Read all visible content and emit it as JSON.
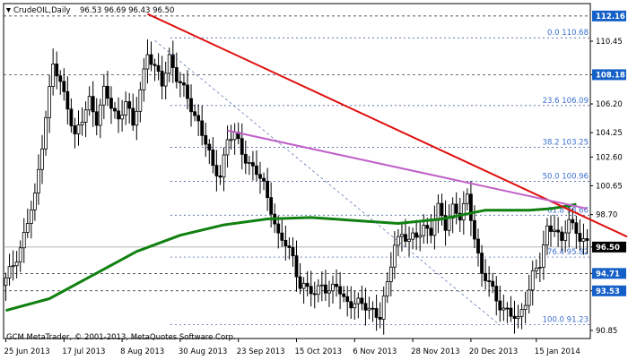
{
  "header": {
    "symbol_text": "CrudeOIL,Daily",
    "ohlc_text": "96.53 96.69 96.43 96.50"
  },
  "footer": {
    "copyright": "GCM MetaTrader, © 2001-2013, MetaQuotes Software Corp."
  },
  "colors": {
    "background": "#ffffff",
    "candle": "#000000",
    "grid": "#1e1e1e",
    "fib_grid": "#2b4c9a",
    "fib_label": "#3a6fd0",
    "trend_red": "#e01010",
    "trend_purple": "#c060c8",
    "ma_green": "#108010",
    "price_tag_blue": "#1460c8",
    "current_tag_bg": "#000000"
  },
  "chart_data": {
    "type": "candlestick",
    "instrument": "CrudeOIL",
    "timeframe": "Daily",
    "ylim": [
      90.3,
      113.0
    ],
    "y_ticks": [
      110.45,
      108.18,
      106.2,
      104.25,
      102.6,
      100.65,
      98.7,
      96.5,
      94.71,
      93.53,
      90.85
    ],
    "y_tick_labels": [
      "110.45",
      "108.18",
      "106.20",
      "104.25",
      "102.60",
      "100.65",
      "98.70",
      "96.50",
      "94.71",
      "93.53",
      "90.85"
    ],
    "price_tags": [
      {
        "label": "112.16",
        "value": 112.16,
        "style": "blue"
      },
      {
        "label": "108.18",
        "value": 108.18,
        "style": "blue"
      },
      {
        "label": "96.50",
        "value": 96.5,
        "style": "current"
      },
      {
        "label": "94.71",
        "value": 94.71,
        "style": "blue"
      },
      {
        "label": "93.53",
        "value": 93.53,
        "style": "blue"
      }
    ],
    "x_tick_labels": [
      "25 Jun 2013",
      "17 Jul 2013",
      "8 Aug 2013",
      "30 Aug 2013",
      "23 Sep 2013",
      "15 Oct 2013",
      "6 Nov 2013",
      "28 Nov 2013",
      "20 Dec 2013",
      "15 Jan 2014"
    ],
    "x_tick_index": [
      0,
      16,
      32,
      48,
      64,
      80,
      96,
      112,
      128,
      146
    ],
    "fib_levels": [
      {
        "label": "0.0 110.68",
        "value": 110.68
      },
      {
        "label": "23.6 106.09",
        "value": 106.09
      },
      {
        "label": "38.2 103.25",
        "value": 103.25
      },
      {
        "label": "50.0 100.96",
        "value": 100.96
      },
      {
        "label": "61.8 98.66",
        "value": 98.66
      },
      {
        "label": "76.4 95.82",
        "value": 95.82
      },
      {
        "label": "100.0 91.23",
        "value": 91.23
      }
    ],
    "trendlines": [
      {
        "name": "red",
        "from": [
          39,
          112.3
        ],
        "to": [
          171,
          97.2
        ]
      },
      {
        "name": "purple",
        "from": [
          61,
          104.4
        ],
        "to": [
          160,
          99.1
        ]
      },
      {
        "name": "dashed",
        "from": [
          41,
          110.5
        ],
        "to": [
          136,
          91.2
        ]
      }
    ],
    "moving_average": [
      [
        0,
        92.2
      ],
      [
        12,
        93.0
      ],
      [
        24,
        94.6
      ],
      [
        36,
        96.2
      ],
      [
        48,
        97.3
      ],
      [
        60,
        98.0
      ],
      [
        72,
        98.4
      ],
      [
        84,
        98.5
      ],
      [
        96,
        98.3
      ],
      [
        108,
        98.1
      ],
      [
        120,
        98.4
      ],
      [
        132,
        99.0
      ],
      [
        144,
        99.0
      ],
      [
        150,
        99.1
      ],
      [
        155,
        99.3
      ],
      [
        157,
        99.4
      ]
    ],
    "close_anchors": [
      [
        0,
        94.2
      ],
      [
        4,
        96.5
      ],
      [
        8,
        99.8
      ],
      [
        11,
        105.5
      ],
      [
        13,
        108.8
      ],
      [
        15,
        107.5
      ],
      [
        17,
        106.2
      ],
      [
        19,
        104.0
      ],
      [
        21,
        105.0
      ],
      [
        23,
        106.5
      ],
      [
        25,
        105.2
      ],
      [
        27,
        107.0
      ],
      [
        29,
        106.0
      ],
      [
        31,
        105.2
      ],
      [
        33,
        106.5
      ],
      [
        35,
        104.5
      ],
      [
        37,
        107.2
      ],
      [
        39,
        109.8
      ],
      [
        41,
        108.5
      ],
      [
        43,
        107.5
      ],
      [
        45,
        109.5
      ],
      [
        47,
        108.0
      ],
      [
        49,
        107.0
      ],
      [
        51,
        106.0
      ],
      [
        53,
        105.0
      ],
      [
        55,
        103.5
      ],
      [
        57,
        101.8
      ],
      [
        59,
        101.5
      ],
      [
        61,
        103.8
      ],
      [
        63,
        104.0
      ],
      [
        65,
        103.0
      ],
      [
        67,
        102.2
      ],
      [
        69,
        101.5
      ],
      [
        71,
        100.6
      ],
      [
        73,
        99.2
      ],
      [
        75,
        97.2
      ],
      [
        77,
        96.6
      ],
      [
        79,
        95.8
      ],
      [
        81,
        94.0
      ],
      [
        83,
        93.6
      ],
      [
        85,
        93.2
      ],
      [
        87,
        94.2
      ],
      [
        89,
        93.4
      ],
      [
        91,
        93.8
      ],
      [
        93,
        93.0
      ],
      [
        95,
        92.8
      ],
      [
        97,
        92.6
      ],
      [
        99,
        92.4
      ],
      [
        101,
        92.3
      ],
      [
        103,
        91.8
      ],
      [
        105,
        93.8
      ],
      [
        107,
        96.8
      ],
      [
        109,
        97.5
      ],
      [
        111,
        96.8
      ],
      [
        113,
        97.2
      ],
      [
        115,
        98.0
      ],
      [
        117,
        97.5
      ],
      [
        119,
        99.0
      ],
      [
        121,
        98.0
      ],
      [
        123,
        99.3
      ],
      [
        125,
        98.4
      ],
      [
        127,
        99.8
      ],
      [
        129,
        97.4
      ],
      [
        131,
        94.6
      ],
      [
        133,
        94.0
      ],
      [
        135,
        93.0
      ],
      [
        137,
        92.4
      ],
      [
        139,
        91.8
      ],
      [
        141,
        91.5
      ],
      [
        143,
        93.0
      ],
      [
        145,
        94.6
      ],
      [
        147,
        95.2
      ],
      [
        149,
        97.8
      ],
      [
        151,
        98.0
      ],
      [
        153,
        96.6
      ],
      [
        155,
        98.4
      ],
      [
        157,
        97.6
      ],
      [
        159,
        97.0
      ],
      [
        160,
        96.5
      ]
    ]
  }
}
